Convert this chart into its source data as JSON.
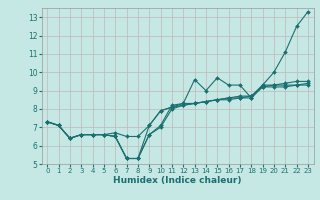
{
  "title": "",
  "xlabel": "Humidex (Indice chaleur)",
  "background_color": "#c6e8e4",
  "grid_color": "#c0b8b8",
  "line_color": "#1a7070",
  "xlim": [
    -0.5,
    23.5
  ],
  "ylim": [
    5,
    13.5
  ],
  "yticks": [
    5,
    6,
    7,
    8,
    9,
    10,
    11,
    12,
    13
  ],
  "xticks": [
    0,
    1,
    2,
    3,
    4,
    5,
    6,
    7,
    8,
    9,
    10,
    11,
    12,
    13,
    14,
    15,
    16,
    17,
    18,
    19,
    20,
    21,
    22,
    23
  ],
  "series": [
    [
      7.3,
      7.1,
      6.4,
      6.6,
      6.6,
      6.6,
      6.5,
      5.3,
      5.3,
      6.6,
      7.1,
      8.2,
      8.3,
      9.6,
      9.0,
      9.7,
      9.3,
      9.3,
      8.6,
      9.3,
      10.0,
      11.1,
      12.5,
      13.3
    ],
    [
      7.3,
      7.1,
      6.4,
      6.6,
      6.6,
      6.6,
      6.5,
      5.3,
      5.3,
      7.1,
      7.9,
      8.1,
      8.3,
      8.3,
      8.4,
      8.5,
      8.6,
      8.6,
      8.7,
      9.3,
      9.3,
      9.3,
      9.3,
      9.3
    ],
    [
      7.3,
      7.1,
      6.4,
      6.6,
      6.6,
      6.6,
      6.7,
      6.5,
      6.5,
      7.1,
      7.9,
      8.1,
      8.2,
      8.3,
      8.4,
      8.5,
      8.6,
      8.7,
      8.7,
      9.2,
      9.3,
      9.4,
      9.5,
      9.5
    ],
    [
      7.3,
      7.1,
      6.4,
      6.6,
      6.6,
      6.6,
      6.5,
      5.3,
      5.3,
      6.6,
      7.0,
      8.0,
      8.2,
      8.3,
      8.4,
      8.5,
      8.5,
      8.6,
      8.6,
      9.2,
      9.2,
      9.2,
      9.3,
      9.4
    ]
  ],
  "markers_series": [
    0,
    1,
    2,
    3
  ]
}
